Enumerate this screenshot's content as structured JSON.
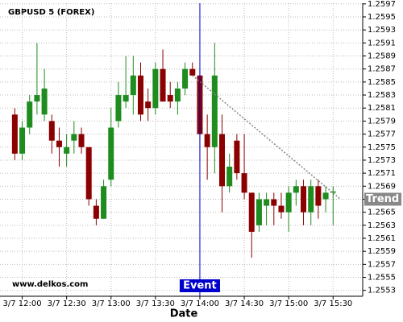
{
  "chart_data": {
    "type": "candlestick",
    "title": "GBPUSD 5 (FOREX)",
    "x_label": "Date",
    "watermark": "www.delkos.com",
    "x": [
      715,
      720,
      725,
      730,
      735,
      740,
      745,
      750,
      755,
      760,
      765,
      770,
      775,
      780,
      785,
      790,
      795,
      800,
      805,
      810,
      815,
      820,
      825,
      830,
      835,
      840,
      845,
      850,
      855,
      860,
      865,
      870,
      875,
      880,
      885,
      890,
      895,
      900,
      905,
      910,
      915,
      920,
      925,
      930
    ],
    "open": [
      1.258,
      1.2574,
      1.2578,
      1.2582,
      1.258,
      1.2579,
      1.2576,
      1.2574,
      1.2576,
      1.2577,
      1.2575,
      1.2566,
      1.2564,
      1.257,
      1.2579,
      1.2582,
      1.2583,
      1.2586,
      1.2582,
      1.2581,
      1.2587,
      1.2583,
      1.2582,
      1.2584,
      1.2587,
      1.2586,
      1.2577,
      1.2575,
      1.2577,
      1.2569,
      1.2576,
      1.2571,
      1.2568,
      1.2563,
      1.2566,
      1.2567,
      1.2566,
      1.2565,
      1.2568,
      1.2569,
      1.2565,
      1.2569,
      1.2567,
      1.2568
    ],
    "high": [
      1.2581,
      1.2579,
      1.2583,
      1.2591,
      1.2587,
      1.258,
      1.2578,
      1.2577,
      1.2579,
      1.2578,
      1.2575,
      1.2567,
      1.257,
      1.2581,
      1.2585,
      1.2589,
      1.2589,
      1.2588,
      1.2584,
      1.2588,
      1.259,
      1.2585,
      1.2585,
      1.2588,
      1.2588,
      1.2587,
      1.258,
      1.2591,
      1.258,
      1.2574,
      1.2577,
      1.2577,
      1.2568,
      1.2568,
      1.2568,
      1.2568,
      1.2568,
      1.2569,
      1.257,
      1.257,
      1.257,
      1.257,
      1.2569,
      1.2569
    ],
    "low": [
      1.2573,
      1.2573,
      1.2577,
      1.258,
      1.2579,
      1.2574,
      1.2572,
      1.2572,
      1.2574,
      1.2574,
      1.2566,
      1.2563,
      1.2564,
      1.2569,
      1.2578,
      1.2581,
      1.258,
      1.2579,
      1.2579,
      1.258,
      1.2582,
      1.2581,
      1.258,
      1.2583,
      1.2586,
      1.2573,
      1.257,
      1.2571,
      1.2565,
      1.2568,
      1.257,
      1.2567,
      1.2558,
      1.2562,
      1.2563,
      1.2563,
      1.2564,
      1.2562,
      1.2566,
      1.2563,
      1.2563,
      1.2564,
      1.2565,
      1.2563
    ],
    "close": [
      1.2574,
      1.2578,
      1.2582,
      1.2583,
      1.2584,
      1.2576,
      1.2575,
      1.2575,
      1.2577,
      1.2575,
      1.2567,
      1.2564,
      1.2569,
      1.2578,
      1.2583,
      1.2583,
      1.2586,
      1.258,
      1.2581,
      1.2587,
      1.2582,
      1.2582,
      1.2584,
      1.2587,
      1.2586,
      1.2577,
      1.2575,
      1.2586,
      1.2569,
      1.2572,
      1.2571,
      1.2568,
      1.2562,
      1.2567,
      1.2567,
      1.2566,
      1.2565,
      1.2568,
      1.2569,
      1.2565,
      1.2569,
      1.2566,
      1.2568,
      1.25682
    ],
    "up_color": "#1e8c1e",
    "down_color": "#8b0000",
    "xlim": [
      705,
      950
    ],
    "ylim": [
      1.25521,
      1.25971
    ],
    "xticks": [
      {
        "value": 720,
        "label": "3/7 12:00"
      },
      {
        "value": 750,
        "label": "3/7 12:30"
      },
      {
        "value": 780,
        "label": "3/7 13:00"
      },
      {
        "value": 810,
        "label": "3/7 13:30"
      },
      {
        "value": 840,
        "label": "3/7 14:00"
      },
      {
        "value": 870,
        "label": "3/7 14:30"
      },
      {
        "value": 900,
        "label": "3/7 15:00"
      },
      {
        "value": 930,
        "label": "3/7 15:30"
      }
    ],
    "yticks": [
      1.2553,
      1.2555,
      1.2557,
      1.2559,
      1.2561,
      1.2563,
      1.2565,
      1.2567,
      1.2569,
      1.2571,
      1.2573,
      1.2575,
      1.2577,
      1.2579,
      1.2581,
      1.2583,
      1.2585,
      1.2587,
      1.2589,
      1.2591,
      1.2593,
      1.2595,
      1.2597
    ],
    "grid": true,
    "event": {
      "label": "Event",
      "x": 840,
      "color": "#0000cc"
    },
    "trend": {
      "label": "Trend",
      "x": [
        835,
        935
      ],
      "y": [
        1.2586,
        1.2567
      ],
      "color": "#888888"
    }
  }
}
